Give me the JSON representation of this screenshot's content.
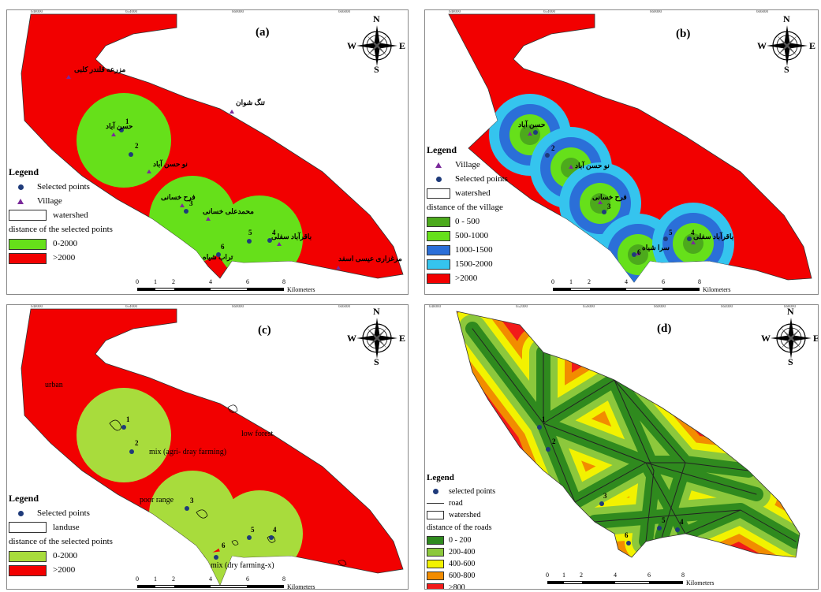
{
  "compass": {
    "n": "N",
    "s": "S",
    "e": "E",
    "w": "W"
  },
  "scale": {
    "ticks": [
      "0",
      "1",
      "2",
      "4",
      "6",
      "8"
    ],
    "unit": "Kilometers"
  },
  "colors": {
    "red": "#f20000",
    "green": "#66e01a",
    "lightgreen": "#a8dc3c",
    "darkgreen": "#4caa1c",
    "blue": "#2b6fd8",
    "cyan": "#35c4ee",
    "point": "#1f3b7a",
    "village": "#7a2a9a"
  },
  "panel_a": {
    "title": "(a)",
    "legend": {
      "title": "Legend",
      "selected_points": "Selected points",
      "village": "Village",
      "watershed": "watershed",
      "distance_title": "distance of the selected points",
      "classes": [
        "0-2000",
        ">2000"
      ]
    },
    "villages": [
      "مزرعه قلندر کلبی",
      "تنگ شوان",
      "حسن آباد",
      "نو حسن آباد",
      "فرح خسانی",
      "محمدعلی خسانی",
      "باقرآباد سفلی",
      "مرغزاری عیسی اسفد",
      "تراب شیاه"
    ],
    "points": [
      "1",
      "2",
      "3",
      "4",
      "5",
      "6"
    ]
  },
  "panel_b": {
    "title": "(b)",
    "legend": {
      "title": "Legend",
      "village": "Village",
      "selected_points": "Selected points",
      "watershed": "watershed",
      "distance_title": "distance of the village",
      "classes": [
        "0 - 500",
        "500-1000",
        "1000-1500",
        "1500-2000",
        ">2000"
      ]
    },
    "villages": [
      "حسن آباد",
      "نو حسن آباد",
      "فرح خسانی",
      "باقرآباد سفلی",
      "سرا شیاه"
    ],
    "points": [
      "1",
      "2",
      "3",
      "4",
      "5",
      "6"
    ]
  },
  "panel_c": {
    "title": "(c)",
    "legend": {
      "title": "Legend",
      "selected_points": "Selected points",
      "landuse": "landuse",
      "distance_title": "distance of the selected points",
      "classes": [
        "0-2000",
        ">2000"
      ]
    },
    "landuse_labels": [
      "urban",
      "low forest",
      "mix (agri- dray farming)",
      "poor range",
      "mix (dry farming-x)"
    ],
    "points": [
      "1",
      "2",
      "3",
      "4",
      "5",
      "6"
    ]
  },
  "panel_d": {
    "title": "(d)",
    "legend": {
      "title": "Legend",
      "selected_points": "selected points",
      "road": "road",
      "watershed": "watershed",
      "distance_title": "distance of the roads",
      "classes": [
        "0 - 200",
        "200-400",
        "400-600",
        "600-800",
        ">800"
      ]
    },
    "points": [
      "1",
      "2",
      "3",
      "4",
      "5",
      "6"
    ]
  },
  "road_colors": [
    "#2f8a1e",
    "#8cc83c",
    "#f2f200",
    "#f28c00",
    "#f21a1a"
  ]
}
